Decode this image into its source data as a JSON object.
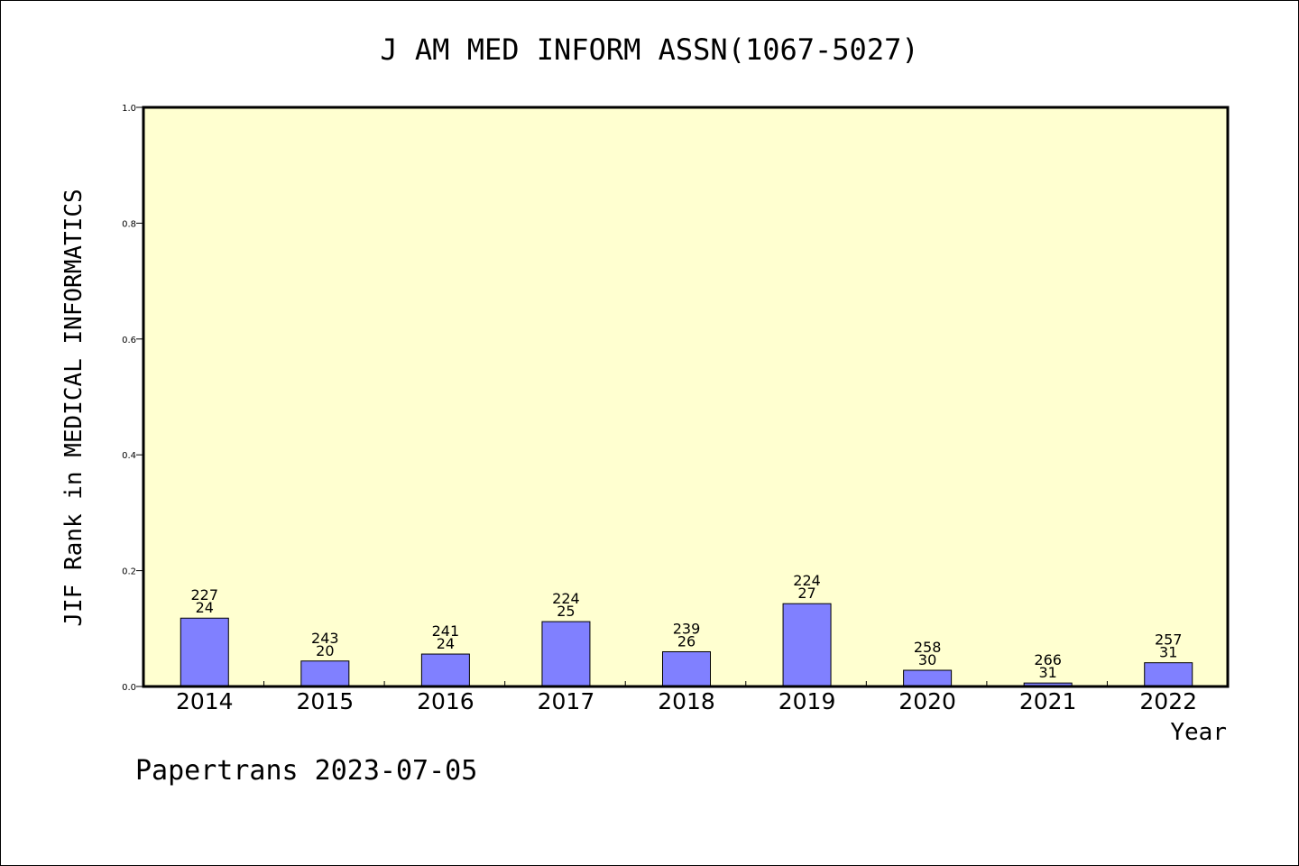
{
  "chart_data": {
    "type": "bar",
    "title": "J AM MED INFORM ASSN(1067-5027)",
    "ylabel": "JIF Rank in MEDICAL INFORMATICS",
    "xlabel": "Year",
    "ylim": [
      0,
      1.0
    ],
    "yticks": [
      "0.0",
      "0.2",
      "0.4",
      "0.6",
      "0.8",
      "1.0"
    ],
    "categories": [
      "2014",
      "2015",
      "2016",
      "2017",
      "2018",
      "2019",
      "2020",
      "2021",
      "2022"
    ],
    "values": [
      0.118,
      0.044,
      0.056,
      0.112,
      0.06,
      0.143,
      0.028,
      0.006,
      0.041
    ],
    "bar_labels": [
      {
        "total": "227",
        "rank": "24"
      },
      {
        "total": "243",
        "rank": "20"
      },
      {
        "total": "241",
        "rank": "24"
      },
      {
        "total": "224",
        "rank": "25"
      },
      {
        "total": "239",
        "rank": "26"
      },
      {
        "total": "224",
        "rank": "27"
      },
      {
        "total": "258",
        "rank": "30"
      },
      {
        "total": "266",
        "rank": "31"
      },
      {
        "total": "257",
        "rank": "31"
      }
    ],
    "grid": false,
    "colors": {
      "bar": "#8080ff",
      "plot_bg": "#ffffd0",
      "axis": "#000000"
    }
  },
  "footer": "Papertrans 2023-07-05"
}
